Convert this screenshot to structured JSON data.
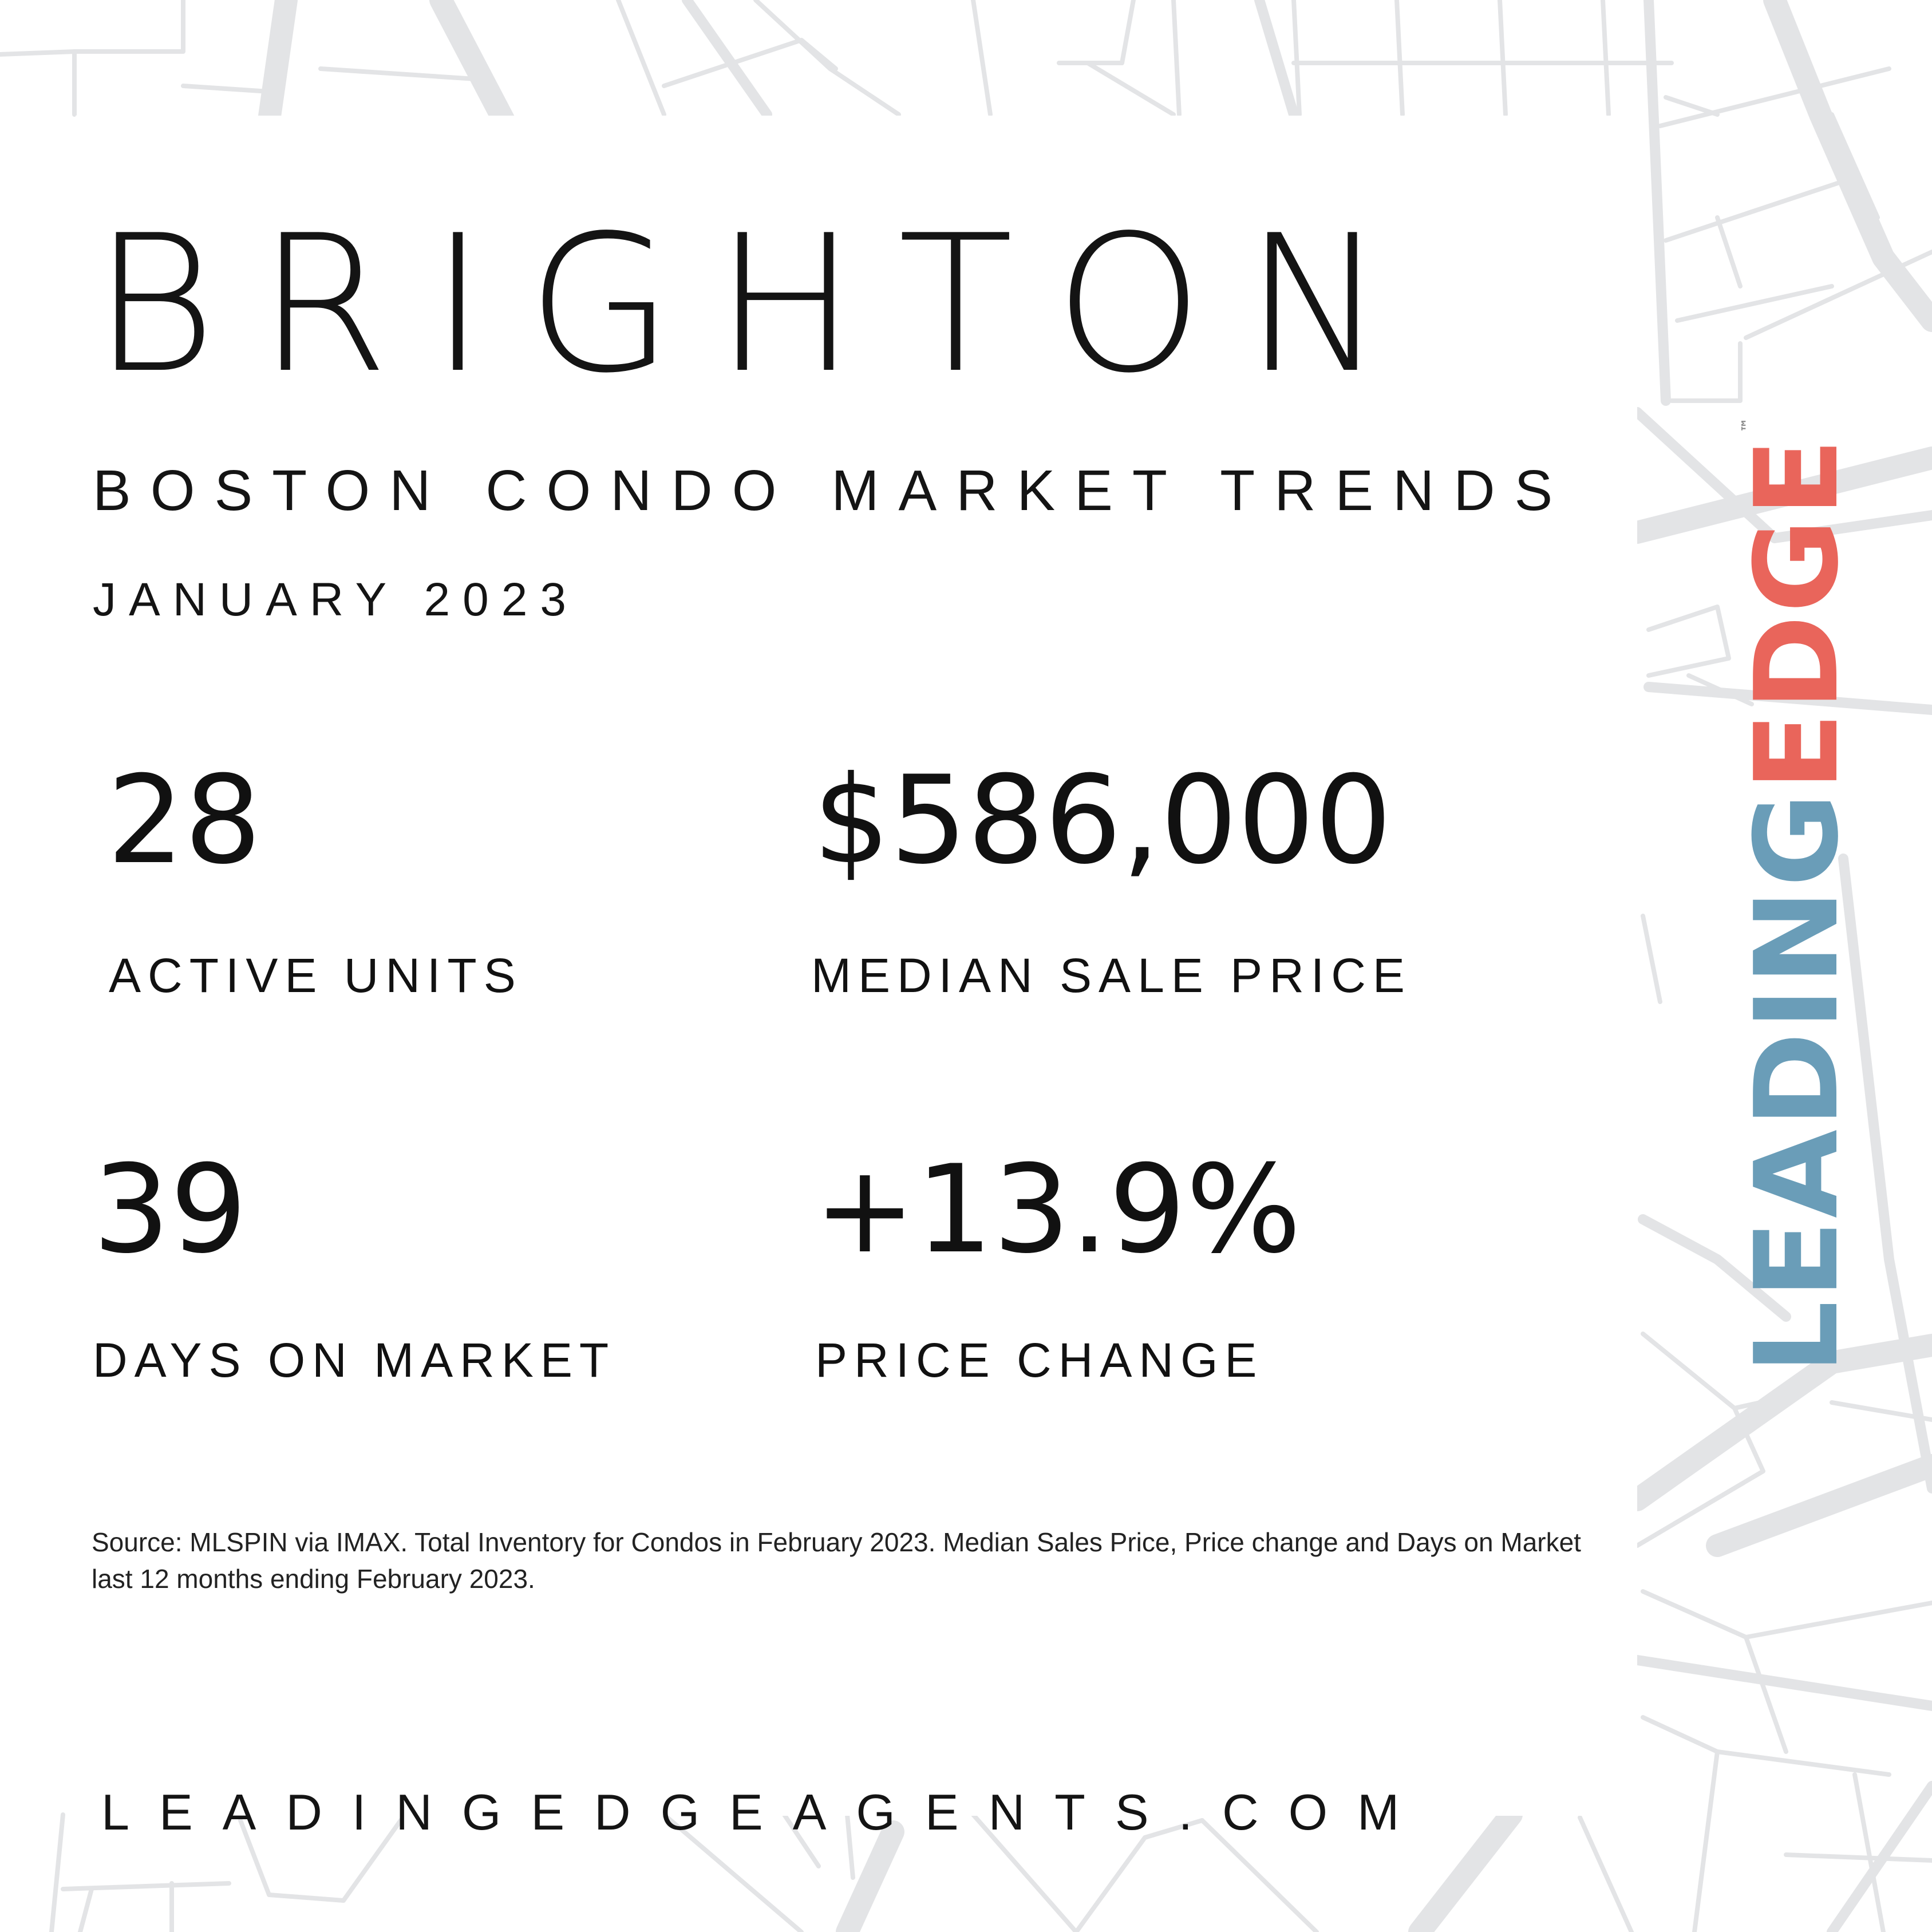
{
  "header": {
    "city": "BRIGHTON",
    "subtitle": "BOSTON CONDO MARKET TRENDS",
    "period": "JANUARY 2023"
  },
  "stats": {
    "active_units": {
      "value": "28",
      "label": "ACTIVE UNITS"
    },
    "median_sale_price": {
      "value": "$586,000",
      "label": "MEDIAN SALE PRICE"
    },
    "days_on_market": {
      "value": "39",
      "label": "DAYS ON MARKET"
    },
    "price_change": {
      "value": "+13.9%",
      "label": "PRICE CHANGE"
    }
  },
  "footer": {
    "source": "Source: MLSPIN via IMAX. Total Inventory for Condos in February 2023. Median Sales Price, Price change and Days on Market last 12 months ending February 2023.",
    "website": "LEADINGEDGEAGENTS.COM"
  },
  "logo": {
    "part1": "LEADING",
    "part2": "EDGE",
    "trademark": "™"
  },
  "colors": {
    "logo_blue": "#6a9db8",
    "logo_red": "#e9655b",
    "map_lines": "#e3e4e6"
  },
  "icons": {
    "background": "street-map-pattern"
  }
}
